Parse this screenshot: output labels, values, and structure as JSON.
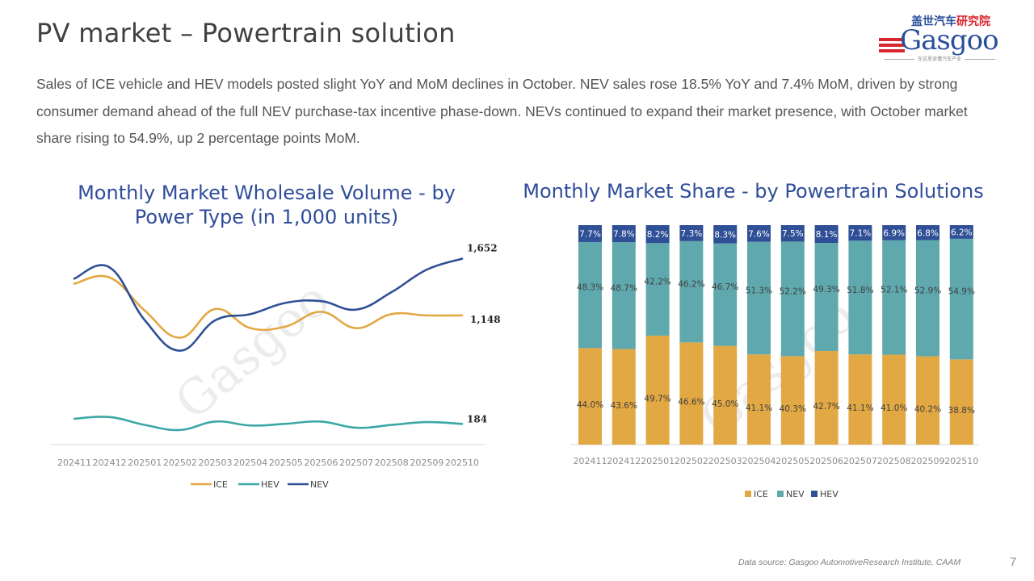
{
  "page": {
    "title": "PV market – Powertrain solution",
    "summary": "Sales of ICE vehicle and HEV models posted slight YoY and MoM declines in October. NEV sales rose 18.5% YoY and 7.4% MoM, driven by strong consumer demand ahead of the full NEV purchase-tax incentive phase-down. NEVs continued to expand their market presence, with October market share rising to 54.9%, up 2 percentage points MoM.",
    "source": "Data source: Gasgoo AutomotiveResearch Institute, CAAM",
    "page_number": "7",
    "watermark": "Gasgoo"
  },
  "logo": {
    "cn_blue": "盖世汽车",
    "cn_red": "研究院",
    "brand": "Gasgoo",
    "tagline": "在这里读懂汽车产业"
  },
  "colors": {
    "ice": "#e2a843",
    "hev": "#3ba8a6",
    "nev": "#2f4f96",
    "nev_bar": "#5fa9ae",
    "hev_bar": "#2f4f96",
    "title": "#2f4d9b"
  },
  "chart_data": [
    {
      "type": "line",
      "title": "Monthly Market Wholesale Volume - by Power Type (in 1,000 units)",
      "xlabel": "",
      "ylabel": "",
      "ylim": [
        0,
        1900
      ],
      "grid": false,
      "legend": "bottom",
      "categories": [
        "202411",
        "202412",
        "202501",
        "202502",
        "202503",
        "202504",
        "202505",
        "202506",
        "202507",
        "202508",
        "202509",
        "202510"
      ],
      "series": [
        {
          "name": "ICE",
          "values": [
            1430,
            1485,
            1190,
            950,
            1205,
            1035,
            1050,
            1180,
            1035,
            1160,
            1148,
            1148
          ],
          "end_label": "1,148"
        },
        {
          "name": "HEV",
          "values": [
            230,
            245,
            175,
            130,
            205,
            170,
            185,
            205,
            150,
            175,
            200,
            184
          ],
          "end_label": "184"
        },
        {
          "name": "NEV",
          "values": [
            1475,
            1575,
            1105,
            835,
            1105,
            1160,
            1260,
            1275,
            1200,
            1355,
            1555,
            1652
          ],
          "end_label": "1,652"
        }
      ]
    },
    {
      "type": "bar",
      "stacked": true,
      "percent": true,
      "title": "Monthly Market Share - by Powertrain Solutions",
      "xlabel": "",
      "ylabel": "",
      "ylim": [
        0,
        100
      ],
      "grid": false,
      "legend": "bottom",
      "categories": [
        "202411",
        "202412",
        "202501",
        "202502",
        "202503",
        "202504",
        "202505",
        "202506",
        "202507",
        "202508",
        "202509",
        "202510"
      ],
      "series": [
        {
          "name": "ICE",
          "values": [
            44.0,
            43.6,
            49.7,
            46.6,
            45.0,
            41.1,
            40.3,
            42.7,
            41.1,
            41.0,
            40.2,
            38.8
          ],
          "labels": [
            "44.0%",
            "43.6%",
            "49.7%",
            "46.6%",
            "45.0%",
            "41.1%",
            "40.3%",
            "42.7%",
            "41.1%",
            "41.0%",
            "40.2%",
            "38.8%"
          ]
        },
        {
          "name": "NEV",
          "values": [
            48.3,
            48.7,
            42.2,
            46.2,
            46.7,
            51.3,
            52.2,
            49.3,
            51.8,
            52.1,
            52.9,
            54.9
          ],
          "labels": [
            "48.3%",
            "48.7%",
            "42.2%",
            "46.2%",
            "46.7%",
            "51.3%",
            "52.2%",
            "49.3%",
            "51.8%",
            "52.1%",
            "52.9%",
            "54.9%"
          ]
        },
        {
          "name": "HEV",
          "values": [
            7.7,
            7.8,
            8.2,
            7.3,
            8.3,
            7.6,
            7.5,
            8.1,
            7.1,
            6.9,
            6.8,
            6.2
          ],
          "labels": [
            "7.7%",
            "7.8%",
            "8.2%",
            "7.3%",
            "8.3%",
            "7.6%",
            "7.5%",
            "8.1%",
            "7.1%",
            "6.9%",
            "6.8%",
            "6.2%"
          ]
        }
      ]
    }
  ]
}
